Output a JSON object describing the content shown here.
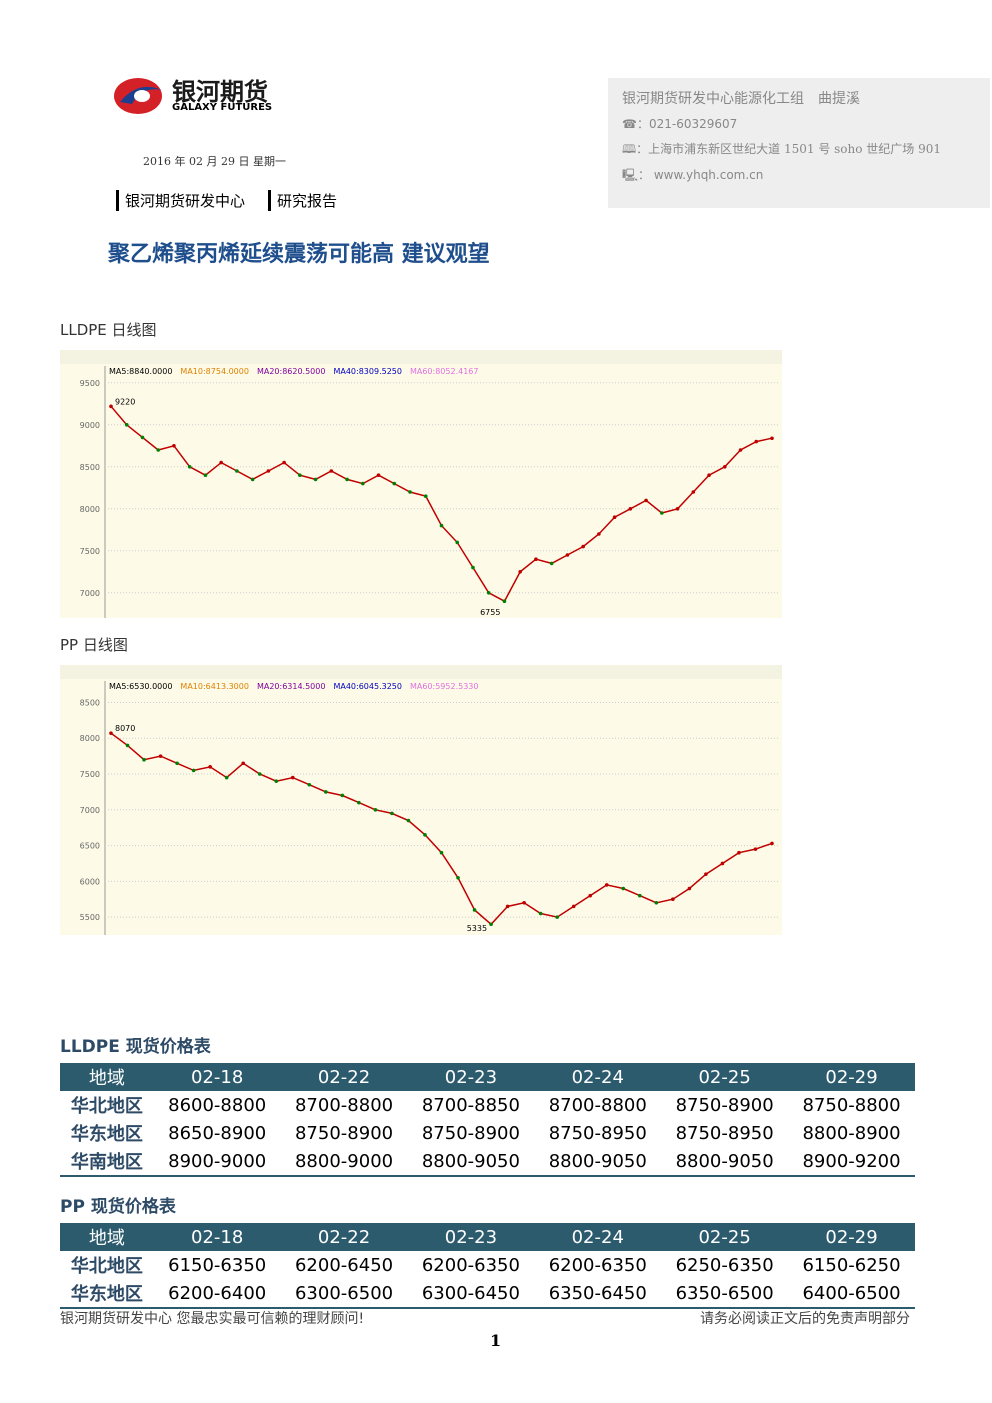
{
  "header": {
    "logo_cn": "银河期货",
    "logo_en": "GALAXY FUTURES",
    "date": "2016 年 02 月 29 日 星期一",
    "dept": "银河期货研发中心",
    "report": "研究报告"
  },
  "contact": {
    "team": "银河期货研发中心能源化工组　曲提溪",
    "phone": "021-60329607",
    "address": "上海市浦东新区世纪大道 1501 号 soho 世纪广场 901",
    "web": "www.yhqh.com.cn"
  },
  "title": "聚乙烯聚丙烯延续震荡可能高 建议观望",
  "chart_data": [
    {
      "type": "line",
      "title": "LLDPE 日线图",
      "color": "#c00000",
      "indicators": [
        {
          "text": "MA5:8840.0000",
          "color": "#000000"
        },
        {
          "text": "MA10:8754.0000",
          "color": "#e08000"
        },
        {
          "text": "MA20:8620.5000",
          "color": "#8000a0"
        },
        {
          "text": "MA40:8309.5250",
          "color": "#0000c0"
        },
        {
          "text": "MA60:8052.4167",
          "color": "#e070e0"
        }
      ],
      "values": [
        9220,
        9000,
        8850,
        8700,
        8750,
        8500,
        8400,
        8550,
        8450,
        8350,
        8450,
        8550,
        8400,
        8350,
        8450,
        8350,
        8300,
        8400,
        8300,
        8200,
        8150,
        7800,
        7600,
        7300,
        7000,
        6900,
        7250,
        7400,
        7350,
        7450,
        7550,
        7700,
        7900,
        8000,
        8100,
        7950,
        8000,
        8200,
        8400,
        8500,
        8700,
        8800,
        8840
      ],
      "high": 9220,
      "low": 6755,
      "ylim": [
        6700,
        9700
      ],
      "yticks": [
        9500,
        9000,
        8500,
        8000,
        7500,
        7000
      ]
    },
    {
      "type": "line",
      "title": "PP 日线图",
      "color": "#c00000",
      "indicators": [
        {
          "text": "MA5:6530.0000",
          "color": "#000000"
        },
        {
          "text": "MA10:6413.3000",
          "color": "#e08000"
        },
        {
          "text": "MA20:6314.5000",
          "color": "#8000a0"
        },
        {
          "text": "MA40:6045.3250",
          "color": "#0000c0"
        },
        {
          "text": "MA60:5952.5330",
          "color": "#e070e0"
        }
      ],
      "values": [
        8070,
        7900,
        7700,
        7750,
        7650,
        7550,
        7600,
        7450,
        7650,
        7500,
        7400,
        7450,
        7350,
        7250,
        7200,
        7100,
        7000,
        6950,
        6850,
        6650,
        6400,
        6050,
        5600,
        5400,
        5650,
        5700,
        5550,
        5500,
        5650,
        5800,
        5950,
        5900,
        5800,
        5700,
        5750,
        5900,
        6100,
        6250,
        6400,
        6450,
        6530
      ],
      "high": 8070,
      "low": 5335,
      "ylim": [
        5250,
        8800
      ],
      "yticks": [
        8500,
        8000,
        7500,
        7000,
        6500,
        6000,
        5500
      ]
    }
  ],
  "tables": [
    {
      "title": "LLDPE 现货价格表",
      "header": [
        "地域",
        "02-18",
        "02-22",
        "02-23",
        "02-24",
        "02-25",
        "02-29"
      ],
      "rows": [
        [
          "华北地区",
          "8600-8800",
          "8700-8800",
          "8700-8850",
          "8700-8800",
          "8750-8900",
          "8750-8800"
        ],
        [
          "华东地区",
          "8650-8900",
          "8750-8900",
          "8750-8900",
          "8750-8950",
          "8750-8950",
          "8800-8900"
        ],
        [
          "华南地区",
          "8900-9000",
          "8800-9000",
          "8800-9050",
          "8800-9050",
          "8800-9050",
          "8900-9200"
        ]
      ]
    },
    {
      "title": "PP 现货价格表",
      "header": [
        "地域",
        "02-18",
        "02-22",
        "02-23",
        "02-24",
        "02-25",
        "02-29"
      ],
      "rows": [
        [
          "华北地区",
          "6150-6350",
          "6200-6450",
          "6200-6350",
          "6200-6350",
          "6250-6350",
          "6150-6250"
        ],
        [
          "华东地区",
          "6200-6400",
          "6300-6500",
          "6300-6450",
          "6350-6450",
          "6350-6500",
          "6400-6500"
        ]
      ]
    }
  ],
  "footer": {
    "left": "银河期货研发中心 您最忠实最可信赖的理财顾问!",
    "right": "请务必阅读正文后的免责声明部分",
    "page": "1"
  }
}
